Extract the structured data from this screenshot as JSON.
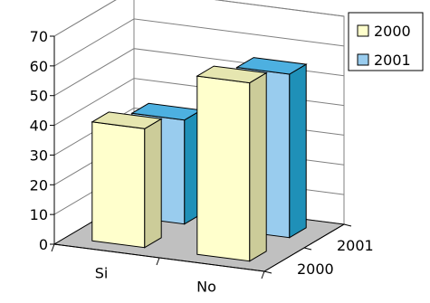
{
  "chart_data": {
    "type": "bar",
    "title": "",
    "categories": [
      "Si",
      "No"
    ],
    "series": [
      {
        "name": "2000",
        "values": [
          40,
          60
        ],
        "color": "#FFFFCC",
        "side_color": "#CCCC99",
        "top_color": "#E6E6B0"
      },
      {
        "name": "2001",
        "values": [
          35,
          55
        ],
        "color": "#99CCEE",
        "side_color": "#1F90B8",
        "top_color": "#4DB0E0"
      }
    ],
    "depth_labels": [
      "2000",
      "2001"
    ],
    "ylim": [
      0,
      70
    ],
    "yticks": [
      "0",
      "10",
      "20",
      "30",
      "40",
      "50",
      "60",
      "70"
    ],
    "xlabel": "",
    "ylabel": "",
    "grid": true,
    "legend": "top-right",
    "colors": {
      "wall": "#ffffff",
      "floor": "#c0c0c0",
      "gridline": "#808080",
      "axis": "#000000"
    }
  }
}
